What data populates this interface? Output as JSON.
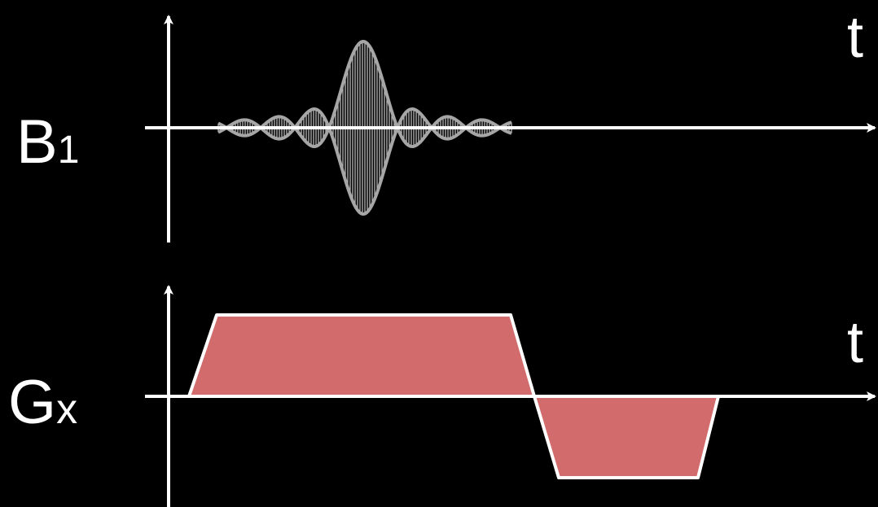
{
  "diagram": {
    "background": "#000000",
    "axis_color": "#ffffff",
    "b1": {
      "label_main": "B",
      "label_sub": "1",
      "t_label": "t",
      "waveform": "sinc",
      "envelope_color": "#a6a6a6",
      "carrier_color": "#c8c8c8"
    },
    "gx": {
      "label_main": "G",
      "label_sub": "x",
      "t_label": "t",
      "fill_color": "#d26b6b",
      "stroke_color": "#ffffff"
    }
  }
}
